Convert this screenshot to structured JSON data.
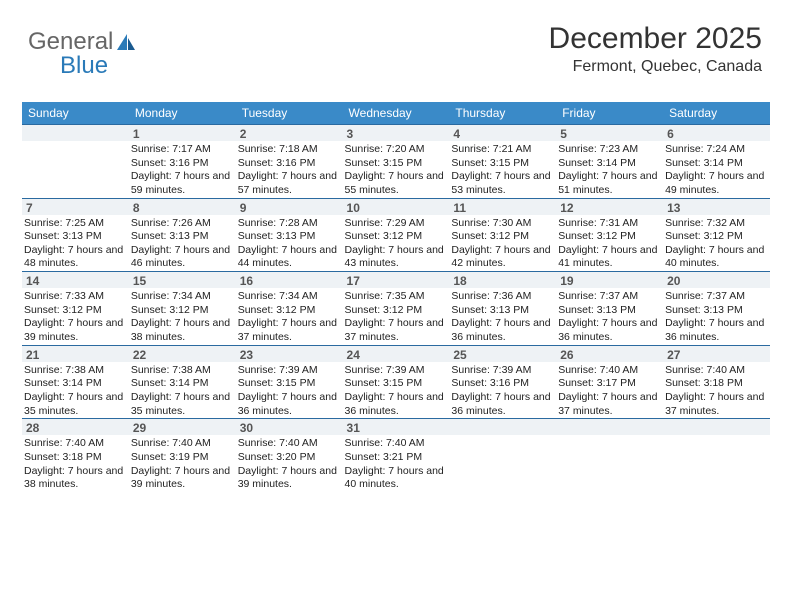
{
  "logo": {
    "text1": "General",
    "text2": "Blue"
  },
  "header": {
    "month_title": "December 2025",
    "location": "Fermont, Quebec, Canada"
  },
  "styling": {
    "page_bg": "#ffffff",
    "header_row_bg": "#3a8ac8",
    "header_row_text": "#ffffff",
    "daynum_bg": "#eef2f5",
    "daynum_border": "#2a6aa0",
    "text_color": "#222222",
    "title_color": "#333333",
    "font_family": "Arial",
    "title_fontsize_pt": 22,
    "location_fontsize_pt": 12,
    "dayhead_fontsize_pt": 9,
    "dayinfo_fontsize_pt": 8
  },
  "day_labels": [
    "Sunday",
    "Monday",
    "Tuesday",
    "Wednesday",
    "Thursday",
    "Friday",
    "Saturday"
  ],
  "weeks": [
    [
      null,
      {
        "n": "1",
        "sr": "7:17 AM",
        "ss": "3:16 PM",
        "dl": "7 hours and 59 minutes."
      },
      {
        "n": "2",
        "sr": "7:18 AM",
        "ss": "3:16 PM",
        "dl": "7 hours and 57 minutes."
      },
      {
        "n": "3",
        "sr": "7:20 AM",
        "ss": "3:15 PM",
        "dl": "7 hours and 55 minutes."
      },
      {
        "n": "4",
        "sr": "7:21 AM",
        "ss": "3:15 PM",
        "dl": "7 hours and 53 minutes."
      },
      {
        "n": "5",
        "sr": "7:23 AM",
        "ss": "3:14 PM",
        "dl": "7 hours and 51 minutes."
      },
      {
        "n": "6",
        "sr": "7:24 AM",
        "ss": "3:14 PM",
        "dl": "7 hours and 49 minutes."
      }
    ],
    [
      {
        "n": "7",
        "sr": "7:25 AM",
        "ss": "3:13 PM",
        "dl": "7 hours and 48 minutes."
      },
      {
        "n": "8",
        "sr": "7:26 AM",
        "ss": "3:13 PM",
        "dl": "7 hours and 46 minutes."
      },
      {
        "n": "9",
        "sr": "7:28 AM",
        "ss": "3:13 PM",
        "dl": "7 hours and 44 minutes."
      },
      {
        "n": "10",
        "sr": "7:29 AM",
        "ss": "3:12 PM",
        "dl": "7 hours and 43 minutes."
      },
      {
        "n": "11",
        "sr": "7:30 AM",
        "ss": "3:12 PM",
        "dl": "7 hours and 42 minutes."
      },
      {
        "n": "12",
        "sr": "7:31 AM",
        "ss": "3:12 PM",
        "dl": "7 hours and 41 minutes."
      },
      {
        "n": "13",
        "sr": "7:32 AM",
        "ss": "3:12 PM",
        "dl": "7 hours and 40 minutes."
      }
    ],
    [
      {
        "n": "14",
        "sr": "7:33 AM",
        "ss": "3:12 PM",
        "dl": "7 hours and 39 minutes."
      },
      {
        "n": "15",
        "sr": "7:34 AM",
        "ss": "3:12 PM",
        "dl": "7 hours and 38 minutes."
      },
      {
        "n": "16",
        "sr": "7:34 AM",
        "ss": "3:12 PM",
        "dl": "7 hours and 37 minutes."
      },
      {
        "n": "17",
        "sr": "7:35 AM",
        "ss": "3:12 PM",
        "dl": "7 hours and 37 minutes."
      },
      {
        "n": "18",
        "sr": "7:36 AM",
        "ss": "3:13 PM",
        "dl": "7 hours and 36 minutes."
      },
      {
        "n": "19",
        "sr": "7:37 AM",
        "ss": "3:13 PM",
        "dl": "7 hours and 36 minutes."
      },
      {
        "n": "20",
        "sr": "7:37 AM",
        "ss": "3:13 PM",
        "dl": "7 hours and 36 minutes."
      }
    ],
    [
      {
        "n": "21",
        "sr": "7:38 AM",
        "ss": "3:14 PM",
        "dl": "7 hours and 35 minutes."
      },
      {
        "n": "22",
        "sr": "7:38 AM",
        "ss": "3:14 PM",
        "dl": "7 hours and 35 minutes."
      },
      {
        "n": "23",
        "sr": "7:39 AM",
        "ss": "3:15 PM",
        "dl": "7 hours and 36 minutes."
      },
      {
        "n": "24",
        "sr": "7:39 AM",
        "ss": "3:15 PM",
        "dl": "7 hours and 36 minutes."
      },
      {
        "n": "25",
        "sr": "7:39 AM",
        "ss": "3:16 PM",
        "dl": "7 hours and 36 minutes."
      },
      {
        "n": "26",
        "sr": "7:40 AM",
        "ss": "3:17 PM",
        "dl": "7 hours and 37 minutes."
      },
      {
        "n": "27",
        "sr": "7:40 AM",
        "ss": "3:18 PM",
        "dl": "7 hours and 37 minutes."
      }
    ],
    [
      {
        "n": "28",
        "sr": "7:40 AM",
        "ss": "3:18 PM",
        "dl": "7 hours and 38 minutes."
      },
      {
        "n": "29",
        "sr": "7:40 AM",
        "ss": "3:19 PM",
        "dl": "7 hours and 39 minutes."
      },
      {
        "n": "30",
        "sr": "7:40 AM",
        "ss": "3:20 PM",
        "dl": "7 hours and 39 minutes."
      },
      {
        "n": "31",
        "sr": "7:40 AM",
        "ss": "3:21 PM",
        "dl": "7 hours and 40 minutes."
      },
      null,
      null,
      null
    ]
  ],
  "labels": {
    "sunrise": "Sunrise: ",
    "sunset": "Sunset: ",
    "daylight": "Daylight: "
  }
}
